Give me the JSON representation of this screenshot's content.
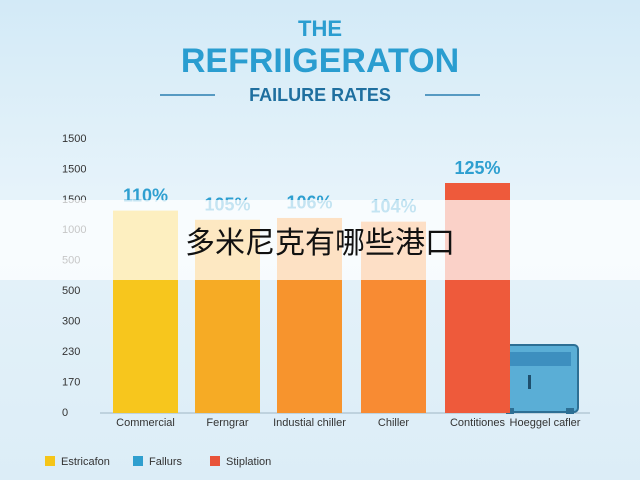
{
  "chart_data": {
    "type": "bar",
    "title": "THE",
    "subtitle": "REFRIIGERATON",
    "heading": "FAILURE RATES",
    "categories": [
      "Commercial",
      "Ferngrar",
      "Industial chiller",
      "Chiller",
      "Contitiones",
      "Hoeggel cafler"
    ],
    "values": [
      110,
      105,
      106,
      104,
      125,
      null
    ],
    "value_labels": [
      "110%",
      "105%",
      "106%",
      "104%",
      "125%",
      null
    ],
    "colors": [
      "#f7c61d",
      "#f6ab25",
      "#f7942d",
      "#f88b33",
      "#ee5a3b",
      null
    ],
    "y_axis_labels": [
      "0",
      "170",
      "230",
      "300",
      "500",
      "500",
      "1000",
      "1500",
      "1500",
      "1500"
    ],
    "legend": [
      {
        "name": "Estricafon",
        "color": "#f5c518"
      },
      {
        "name": "Fallurs",
        "color": "#2f9fcf"
      },
      {
        "name": "Stiplation",
        "color": "#e8533a"
      }
    ],
    "banner": "多米尼克有哪些港口"
  }
}
